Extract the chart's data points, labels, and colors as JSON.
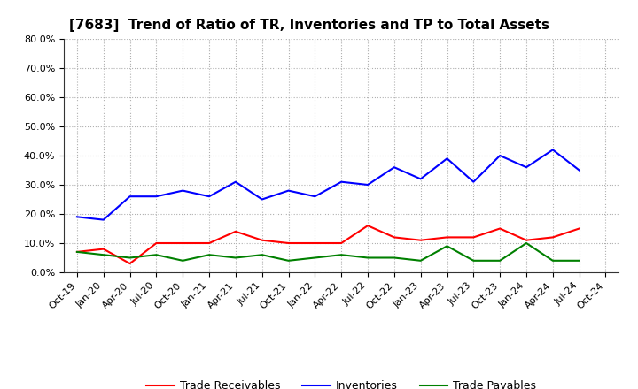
{
  "title": "[7683]  Trend of Ratio of TR, Inventories and TP to Total Assets",
  "x_labels": [
    "Oct-19",
    "Jan-20",
    "Apr-20",
    "Jul-20",
    "Oct-20",
    "Jan-21",
    "Apr-21",
    "Jul-21",
    "Oct-21",
    "Jan-22",
    "Apr-22",
    "Jul-22",
    "Oct-22",
    "Jan-23",
    "Apr-23",
    "Jul-23",
    "Oct-23",
    "Jan-24",
    "Apr-24",
    "Jul-24",
    "Oct-24"
  ],
  "trade_receivables": [
    0.07,
    0.08,
    0.03,
    0.1,
    0.1,
    0.1,
    0.14,
    0.11,
    0.1,
    0.1,
    0.1,
    0.16,
    0.12,
    0.11,
    0.12,
    0.12,
    0.15,
    0.11,
    0.12,
    0.15,
    null
  ],
  "inventories": [
    0.19,
    0.18,
    0.26,
    0.26,
    0.28,
    0.26,
    0.31,
    0.25,
    0.28,
    0.26,
    0.31,
    0.3,
    0.36,
    0.32,
    0.39,
    0.31,
    0.4,
    0.36,
    0.42,
    0.35,
    null
  ],
  "trade_payables": [
    0.07,
    0.06,
    0.05,
    0.06,
    0.04,
    0.06,
    0.05,
    0.06,
    0.04,
    0.05,
    0.06,
    0.05,
    0.05,
    0.04,
    0.09,
    0.04,
    0.04,
    0.1,
    0.04,
    0.04,
    null
  ],
  "tr_color": "#ff0000",
  "inv_color": "#0000ff",
  "tp_color": "#008000",
  "background_color": "#ffffff",
  "grid_color": "#b0b0b0",
  "ylim": [
    0.0,
    0.8
  ],
  "yticks": [
    0.0,
    0.1,
    0.2,
    0.3,
    0.4,
    0.5,
    0.6,
    0.7,
    0.8
  ],
  "legend_labels": [
    "Trade Receivables",
    "Inventories",
    "Trade Payables"
  ],
  "title_fontsize": 11,
  "tick_fontsize": 8
}
